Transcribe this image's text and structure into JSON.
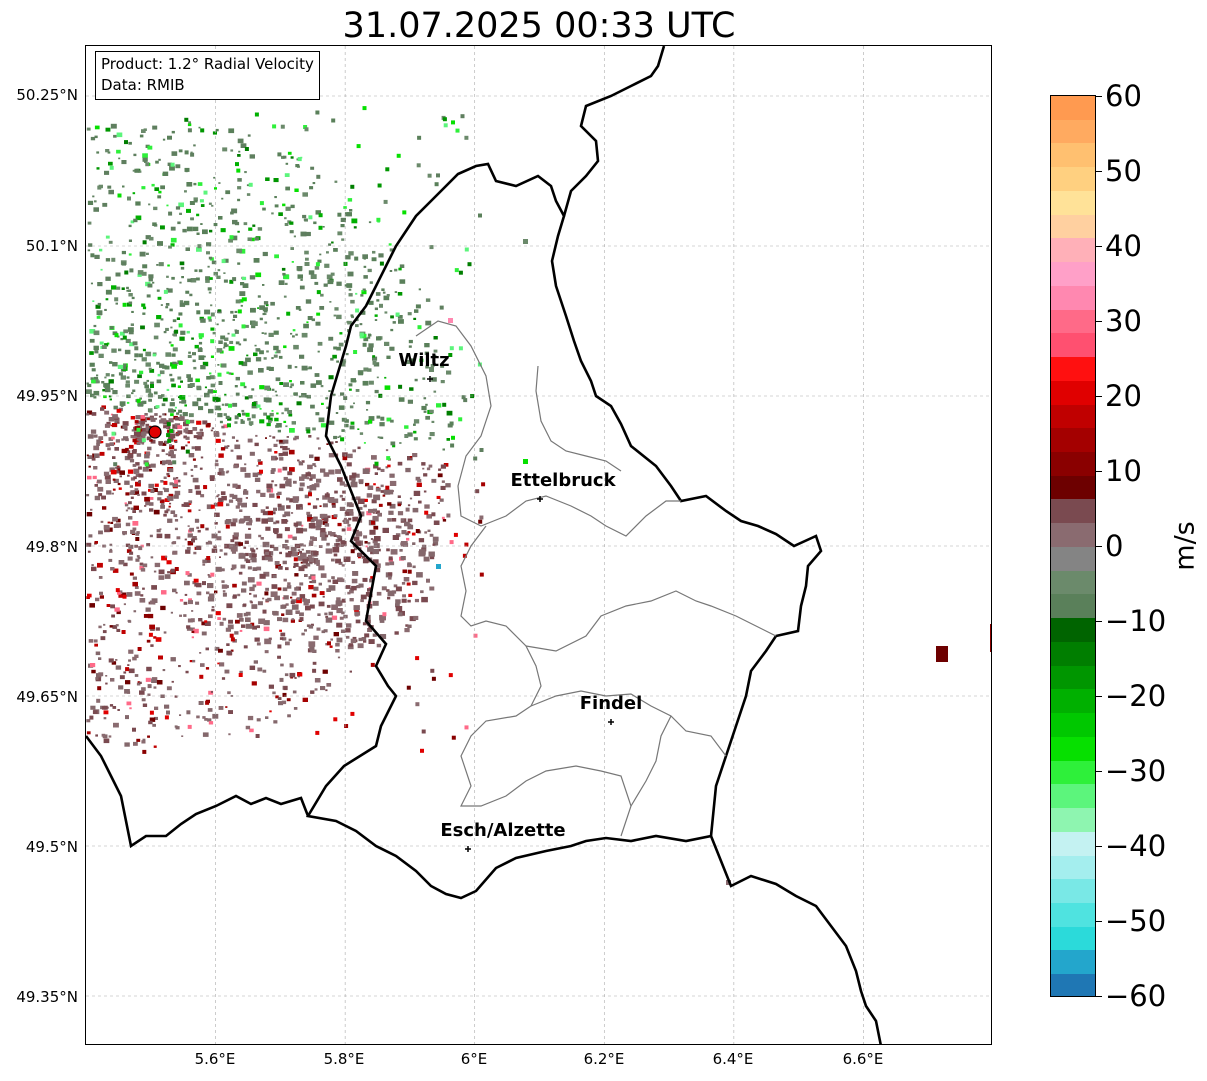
{
  "title": "31.07.2025 00:33 UTC",
  "info": {
    "product": "Product: 1.2° Radial Velocity",
    "data": "Data: RMIB"
  },
  "map": {
    "lon_range": [
      5.4,
      6.8
    ],
    "lat_range": [
      49.3,
      50.3
    ],
    "lat_ticks": [
      "50.25°N",
      "50.1°N",
      "49.95°N",
      "49.8°N",
      "49.65°N",
      "49.5°N",
      "49.35°N"
    ],
    "lon_ticks": [
      "5.6°E",
      "5.8°E",
      "6°E",
      "6.2°E",
      "6.4°E",
      "6.6°E"
    ],
    "grid": true,
    "radar_site": {
      "lon": 5.505,
      "lat": 49.914
    },
    "cities": [
      {
        "name": "Wiltz",
        "lon": 5.933,
        "lat": 49.966
      },
      {
        "name": "Ettelbruck",
        "lon": 6.104,
        "lat": 49.847
      },
      {
        "name": "Findel",
        "lon": 6.211,
        "lat": 49.626
      },
      {
        "name": "Esch/Alzette",
        "lon": 5.987,
        "lat": 49.499
      }
    ]
  },
  "colorbar": {
    "unit": "m/s",
    "min": -60,
    "max": 60,
    "tick_labels": [
      "60",
      "50",
      "40",
      "30",
      "20",
      "10",
      "0",
      "−10",
      "−20",
      "−30",
      "−40",
      "−50",
      "−60"
    ],
    "colors": [
      "#1f77b4",
      "#23a6cc",
      "#2bdada",
      "#4fe3e0",
      "#79e8e6",
      "#a4eeee",
      "#c4f2f2",
      "#8ef5b0",
      "#5cf57c",
      "#2ef03a",
      "#06e000",
      "#00c800",
      "#00b000",
      "#009600",
      "#007e00",
      "#006400",
      "#5a805a",
      "#6b8a6b",
      "#848484",
      "#8a6b70",
      "#7a4a50",
      "#6d0000",
      "#8a0000",
      "#a40000",
      "#c00000",
      "#e00000",
      "#ff1010",
      "#ff5070",
      "#ff6a88",
      "#ff88b0",
      "#ffa0c8",
      "#ffb0b8",
      "#ffd0a0",
      "#ffe298",
      "#ffd080",
      "#ffc070",
      "#ffaa60",
      "#ff9a50"
    ]
  }
}
